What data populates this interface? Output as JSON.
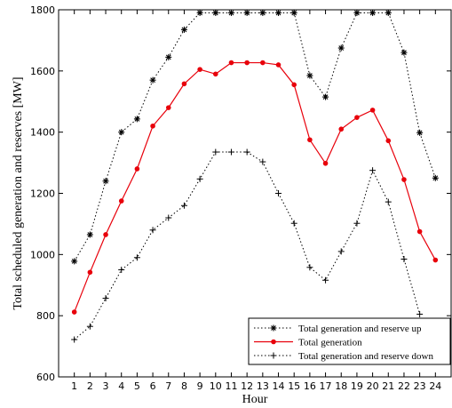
{
  "chart_data": {
    "type": "line",
    "xlabel": "Hour",
    "ylabel": "Total scheduled generation and reserves [MW]",
    "xlim": [
      0,
      25
    ],
    "ylim": [
      600,
      1800
    ],
    "x": [
      1,
      2,
      3,
      4,
      5,
      6,
      7,
      8,
      9,
      10,
      11,
      12,
      13,
      14,
      15,
      16,
      17,
      18,
      19,
      20,
      21,
      22,
      23,
      24
    ],
    "xticks": [
      1,
      2,
      3,
      4,
      5,
      6,
      7,
      8,
      9,
      10,
      11,
      12,
      13,
      14,
      15,
      16,
      17,
      18,
      19,
      20,
      21,
      22,
      23,
      24
    ],
    "yticks": [
      600,
      800,
      1000,
      1200,
      1400,
      1600,
      1800
    ],
    "grid": false,
    "legend_position": "bottom-right",
    "series": [
      {
        "name": "Total generation and reserve up",
        "color": "#000000",
        "line": "dotted",
        "marker": "asterisk",
        "values": [
          978,
          1065,
          1240,
          1400,
          1443,
          1570,
          1645,
          1735,
          1790,
          1790,
          1790,
          1790,
          1790,
          1790,
          1790,
          1585,
          1515,
          1675,
          1790,
          1790,
          1790,
          1660,
          1398,
          1250
        ]
      },
      {
        "name": "Total generation",
        "color": "#e8000b",
        "line": "solid",
        "marker": "dot",
        "values": [
          812,
          942,
          1065,
          1175,
          1280,
          1420,
          1480,
          1558,
          1605,
          1590,
          1627,
          1627,
          1627,
          1620,
          1555,
          1375,
          1298,
          1410,
          1448,
          1472,
          1372,
          1245,
          1075,
          982
        ]
      },
      {
        "name": "Total generation and reserve down",
        "color": "#000000",
        "line": "dotted",
        "marker": "plus",
        "values": [
          722,
          765,
          857,
          950,
          990,
          1080,
          1120,
          1160,
          1247,
          1335,
          1335,
          1335,
          1303,
          1200,
          1102,
          958,
          916,
          1010,
          1102,
          1275,
          1172,
          985,
          805,
          null
        ]
      }
    ]
  }
}
